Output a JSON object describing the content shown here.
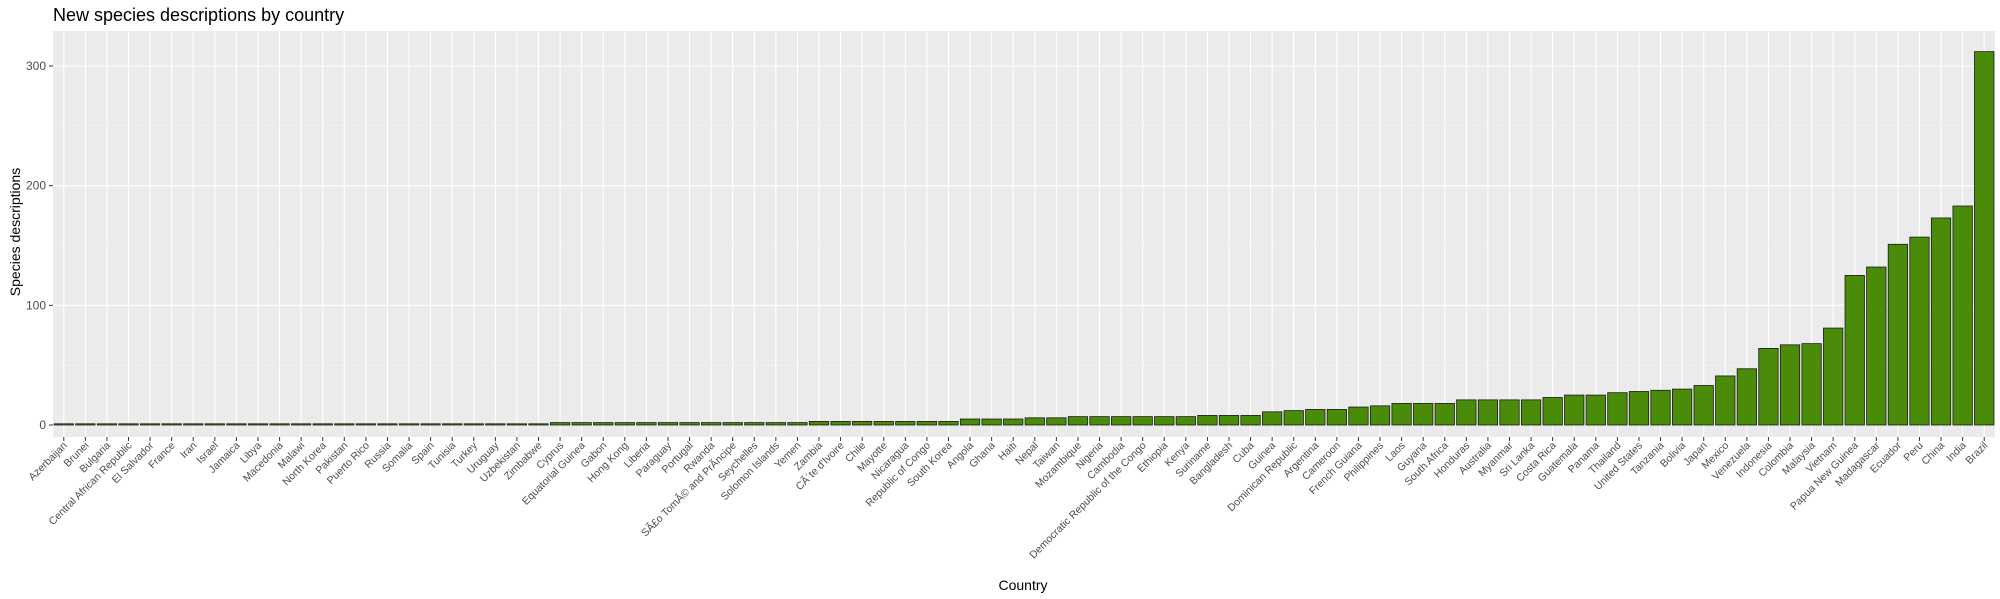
{
  "chart_data": {
    "type": "bar",
    "title": "New species descriptions by country",
    "xlabel": "Country",
    "ylabel": "Species descriptions",
    "ylim": [
      0,
      325
    ],
    "y_ticks": [
      0,
      100,
      200,
      300
    ],
    "grid": true,
    "bar_color": "#4a8c0a",
    "panel_color": "#ebebeb",
    "categories": [
      "Azerbaijan",
      "Brunei",
      "Bulgaria",
      "Central African Republic",
      "El Salvador",
      "France",
      "Iran",
      "Israel",
      "Jamaica",
      "Libya",
      "Macedonia",
      "Malawi",
      "North Korea",
      "Pakistan",
      "Puerto Rico",
      "Russia",
      "Somalia",
      "Spain",
      "Tunisia",
      "Turkey",
      "Uruguay",
      "Uzbekistan",
      "Zimbabwe",
      "Cyprus",
      "Equatorial Guinea",
      "Gabon",
      "Hong Kong",
      "Liberia",
      "Paraguay",
      "Portugal",
      "Rwanda",
      "SÃ£o TomÃ© and PrÃ­ncipe",
      "Seychelles",
      "Solomon Islands",
      "Yemen",
      "Zambia",
      "CÃ´te d'Ivoire",
      "Chile",
      "Mayotte",
      "Nicaragua",
      "Republic of Congo",
      "South Korea",
      "Angola",
      "Ghana",
      "Haiti",
      "Nepal",
      "Taiwan",
      "Mozambique",
      "Nigeria",
      "Cambodia",
      "Democratic Republic of the Congo",
      "Ethiopia",
      "Kenya",
      "Suriname",
      "Bangladesh",
      "Cuba",
      "Guinea",
      "Dominican Republic",
      "Argentina",
      "Cameroon",
      "French Guiana",
      "Philippines",
      "Laos",
      "Guyana",
      "South Africa",
      "Honduras",
      "Australia",
      "Myanmar",
      "Sri Lanka",
      "Costa Rica",
      "Guatemala",
      "Panama",
      "Thailand",
      "United States",
      "Tanzania",
      "Bolivia",
      "Japan",
      "Mexico",
      "Venezuela",
      "Indonesia",
      "Colombia",
      "Malaysia",
      "Vietnam",
      "Papua New Guinea",
      "Madagascar",
      "Ecuador",
      "Peru",
      "China",
      "India",
      "Brazil"
    ],
    "values": [
      1,
      1,
      1,
      1,
      1,
      1,
      1,
      1,
      1,
      1,
      1,
      1,
      1,
      1,
      1,
      1,
      1,
      1,
      1,
      1,
      1,
      1,
      1,
      2,
      2,
      2,
      2,
      2,
      2,
      2,
      2,
      2,
      2,
      2,
      2,
      3,
      3,
      3,
      3,
      3,
      3,
      3,
      5,
      5,
      5,
      6,
      6,
      7,
      7,
      7,
      7,
      7,
      7,
      8,
      8,
      8,
      11,
      12,
      13,
      13,
      15,
      16,
      18,
      18,
      18,
      21,
      21,
      21,
      21,
      23,
      25,
      25,
      27,
      28,
      29,
      30,
      33,
      41,
      47,
      64,
      67,
      68,
      81,
      125,
      132,
      151,
      157,
      173,
      183,
      312
    ]
  }
}
